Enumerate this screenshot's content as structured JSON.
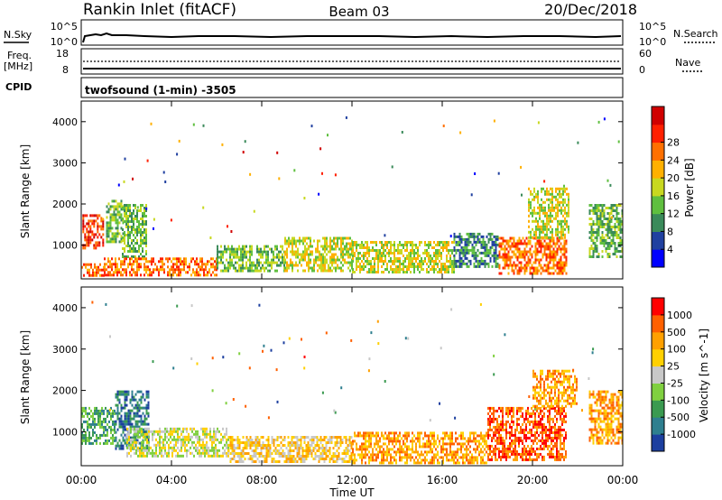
{
  "header": {
    "station": "Rankin Inlet (fitACF)",
    "beam": "Beam 03",
    "date": "20/Dec/2018"
  },
  "strips": {
    "nsky_label": "N.Sky",
    "nsky_ticks": [
      "10^5",
      "10^0"
    ],
    "nsearch_label": "N.Search",
    "freq_label_1": "Freq.",
    "freq_label_2": "[MHz]",
    "freq_ticks": [
      "18",
      "8"
    ],
    "nave_label": "Nave",
    "nave_ticks": [
      "60",
      "0"
    ],
    "cpid_label": "CPID",
    "cpid_value": "twofsound (1-min) -3505"
  },
  "chart_data": [
    {
      "type": "heatmap",
      "name": "power",
      "ylabel": "Slant Range [km]",
      "ylim": [
        180,
        4500
      ],
      "y_ticks": [
        "1000",
        "2000",
        "3000",
        "4000"
      ],
      "x_ticks": [
        "00:00",
        "04:00",
        "08:00",
        "12:00",
        "16:00",
        "20:00",
        "00:00"
      ],
      "colorbar_label": "Power [dB]",
      "colorbar_ticks": [
        "4",
        "8",
        "12",
        "16",
        "20",
        "24",
        "28"
      ],
      "colorbar_colors": [
        "#0000ff",
        "#2040a0",
        "#3a8a5a",
        "#5fbf3f",
        "#c8d820",
        "#ffb000",
        "#ff7000",
        "#ff2000",
        "#d00000"
      ],
      "bands": [
        {
          "t0": 0.0,
          "t1": 1.0,
          "r0": 260,
          "r1": 560,
          "level": 6
        },
        {
          "t0": 0.05,
          "t1": 1.0,
          "r0": 950,
          "r1": 1750,
          "level": 7
        },
        {
          "t0": 1.1,
          "t1": 1.9,
          "r0": 1100,
          "r1": 2100,
          "level": 3
        },
        {
          "t0": 1.8,
          "t1": 2.9,
          "r0": 700,
          "r1": 2000,
          "level": 3
        },
        {
          "t0": 1.0,
          "t1": 6.0,
          "r0": 260,
          "r1": 700,
          "level": 6
        },
        {
          "t0": 6.0,
          "t1": 9.0,
          "r0": 400,
          "r1": 1000,
          "level": 3
        },
        {
          "t0": 9.0,
          "t1": 12.0,
          "r0": 350,
          "r1": 1200,
          "level": 4
        },
        {
          "t0": 12.0,
          "t1": 16.5,
          "r0": 350,
          "r1": 1100,
          "level": 4
        },
        {
          "t0": 16.5,
          "t1": 18.5,
          "r0": 500,
          "r1": 1300,
          "level": 2
        },
        {
          "t0": 18.5,
          "t1": 21.5,
          "r0": 300,
          "r1": 1200,
          "level": 6
        },
        {
          "t0": 19.8,
          "t1": 21.6,
          "r0": 1200,
          "r1": 2400,
          "level": 4
        },
        {
          "t0": 22.5,
          "t1": 24.0,
          "r0": 700,
          "r1": 2000,
          "level": 3
        }
      ]
    },
    {
      "type": "heatmap",
      "name": "velocity",
      "ylabel": "Slant Range [km]",
      "ylim": [
        180,
        4500
      ],
      "y_ticks": [
        "1000",
        "2000",
        "3000",
        "4000"
      ],
      "x_ticks": [
        "00:00",
        "04:00",
        "08:00",
        "12:00",
        "16:00",
        "20:00",
        "00:00"
      ],
      "xlabel": "Time UT",
      "colorbar_label": "Velocity [m s^-1]",
      "colorbar_ticks": [
        "1000",
        "500",
        "100",
        "25",
        "-25",
        "-100",
        "-500",
        "-1000"
      ],
      "colorbar_colors": [
        "#1c3f9f",
        "#2e7f8f",
        "#3a9a50",
        "#80d040",
        "#c8c8c8",
        "#ffd000",
        "#ffa000",
        "#ff6000",
        "#ff0000"
      ],
      "bands": [
        {
          "t0": 0.0,
          "t1": 1.5,
          "r0": 700,
          "r1": 1600,
          "level": 2
        },
        {
          "t0": 1.5,
          "t1": 3.0,
          "r0": 600,
          "r1": 2000,
          "level": 1
        },
        {
          "t0": 2.0,
          "t1": 6.5,
          "r0": 400,
          "r1": 1100,
          "level": 4
        },
        {
          "t0": 6.5,
          "t1": 12.0,
          "r0": 250,
          "r1": 900,
          "level": 5
        },
        {
          "t0": 12.0,
          "t1": 18.0,
          "r0": 250,
          "r1": 1000,
          "level": 6
        },
        {
          "t0": 18.0,
          "t1": 21.5,
          "r0": 300,
          "r1": 1600,
          "level": 7
        },
        {
          "t0": 20.0,
          "t1": 22.0,
          "r0": 1600,
          "r1": 2500,
          "level": 6
        },
        {
          "t0": 22.5,
          "t1": 24.0,
          "r0": 700,
          "r1": 2000,
          "level": 6
        }
      ]
    }
  ]
}
